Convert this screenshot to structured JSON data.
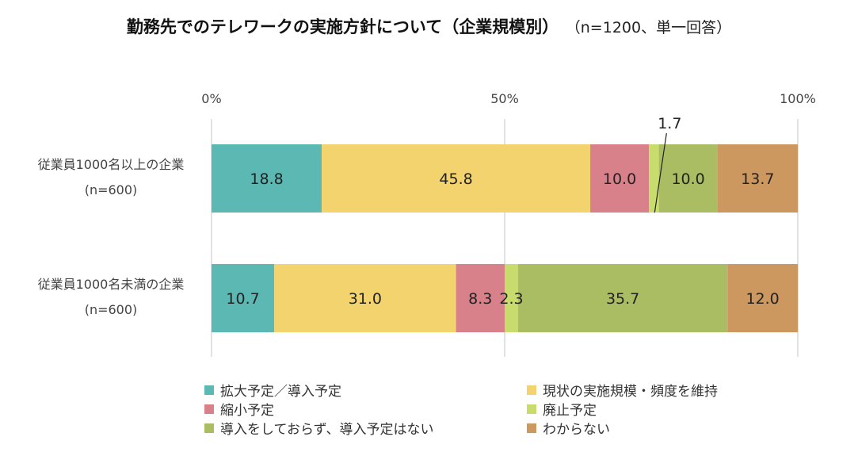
{
  "header": {
    "title": "勤務先でのテレワークの実施方針について（企業規模別）",
    "subtitle": "（n=1200、単一回答）"
  },
  "chart_data": {
    "type": "bar",
    "orientation": "horizontal",
    "stacked": true,
    "title": "勤務先でのテレワークの実施方針について（企業規模別）",
    "subtitle": "（n=1200、単一回答）",
    "xlim": [
      0,
      100
    ],
    "x_ticks": [
      "0%",
      "50%",
      "100%"
    ],
    "x_tick_values": [
      0,
      50,
      100
    ],
    "grid": true,
    "legend_position": "bottom",
    "categories": [
      {
        "label": "従業員1000名以上の企業",
        "n": "(n=600)"
      },
      {
        "label": "従業員1000名未満の企業",
        "n": "(n=600)"
      }
    ],
    "series": [
      {
        "name": "拡大予定／導入予定",
        "color": "#5cb8b2",
        "values": [
          18.8,
          10.7
        ],
        "labels": [
          "18.8",
          "10.7"
        ]
      },
      {
        "name": "現状の実施規模・頻度を維持",
        "color": "#f3d36e",
        "values": [
          45.8,
          31.0
        ],
        "labels": [
          "45.8",
          "31.0"
        ]
      },
      {
        "name": "縮小予定",
        "color": "#d9818a",
        "values": [
          10.0,
          8.3
        ],
        "labels": [
          "10.0",
          "8.3"
        ]
      },
      {
        "name": "廃止予定",
        "color": "#c8dc6e",
        "values": [
          1.7,
          2.3
        ],
        "labels": [
          "1.7",
          "2.3"
        ]
      },
      {
        "name": "導入をしておらず、導入予定はない",
        "color": "#abbd62",
        "values": [
          10.0,
          35.7
        ],
        "labels": [
          "10.0",
          "35.7"
        ]
      },
      {
        "name": "わからない",
        "color": "#cc9860",
        "values": [
          13.7,
          12.0
        ],
        "labels": [
          "13.7",
          "12.0"
        ]
      }
    ],
    "callouts": [
      {
        "series": 3,
        "category": 0,
        "text": "1.7"
      }
    ]
  }
}
